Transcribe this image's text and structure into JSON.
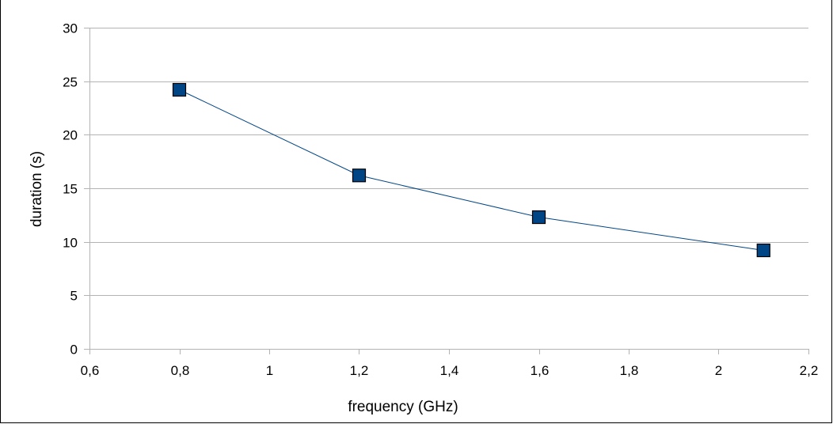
{
  "chart_data": {
    "type": "line",
    "xlabel": "frequency (GHz)",
    "ylabel": "duration (s)",
    "xlim": [
      0.6,
      2.2
    ],
    "ylim": [
      0,
      30
    ],
    "x_ticks": [
      0.6,
      0.8,
      1.0,
      1.2,
      1.4,
      1.6,
      1.8,
      2.0,
      2.2
    ],
    "x_tick_labels": [
      "0,6",
      "0,8",
      "1",
      "1,2",
      "1,4",
      "1,6",
      "1,8",
      "2",
      "2,2"
    ],
    "y_ticks": [
      0,
      5,
      10,
      15,
      20,
      25,
      30
    ],
    "y_tick_labels": [
      "0",
      "5",
      "10",
      "15",
      "20",
      "25",
      "30"
    ],
    "grid": "horizontal",
    "legend": "none",
    "series": [
      {
        "x": [
          0.8,
          1.2,
          1.6,
          2.1
        ],
        "y": [
          24.2,
          16.2,
          12.3,
          9.2
        ],
        "marker": "square",
        "line_color": "#004586",
        "marker_color": "#004586"
      }
    ]
  }
}
